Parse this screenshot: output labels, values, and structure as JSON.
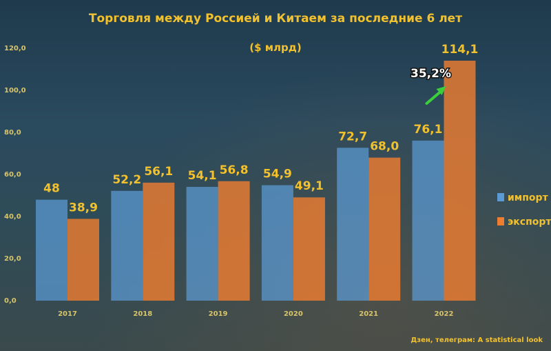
{
  "chart_data": {
    "type": "bar",
    "title": "Торговля между Россией и Китаем за последние 6 лет",
    "subtitle": "($ млрд)",
    "categories": [
      "2017",
      "2018",
      "2019",
      "2020",
      "2021",
      "2022"
    ],
    "series": [
      {
        "name": "импорт",
        "values": [
          48,
          52.2,
          54.1,
          54.9,
          72.7,
          76.1
        ],
        "labels": [
          "48",
          "52,2",
          "54,1",
          "54,9",
          "72,7",
          "76,1"
        ]
      },
      {
        "name": "экспорт",
        "values": [
          38.9,
          56.1,
          56.8,
          49.1,
          68.0,
          114.1
        ],
        "labels": [
          "38,9",
          "56,1",
          "56,8",
          "49,1",
          "68,0",
          "114,1"
        ]
      }
    ],
    "ylim": [
      0,
      120
    ],
    "yticks": [
      "0,0",
      "20,0",
      "40,0",
      "60,0",
      "80,0",
      "100,0",
      "120,0"
    ],
    "annotation": "35,2%",
    "legend_position": "right",
    "grid": false
  },
  "colors": {
    "import": "#5b9bd5",
    "export": "#ed7d31",
    "text": "#f2c12e",
    "arrow": "#3ccf3c"
  },
  "credit": "Дзен, телеграм: A statistical look"
}
